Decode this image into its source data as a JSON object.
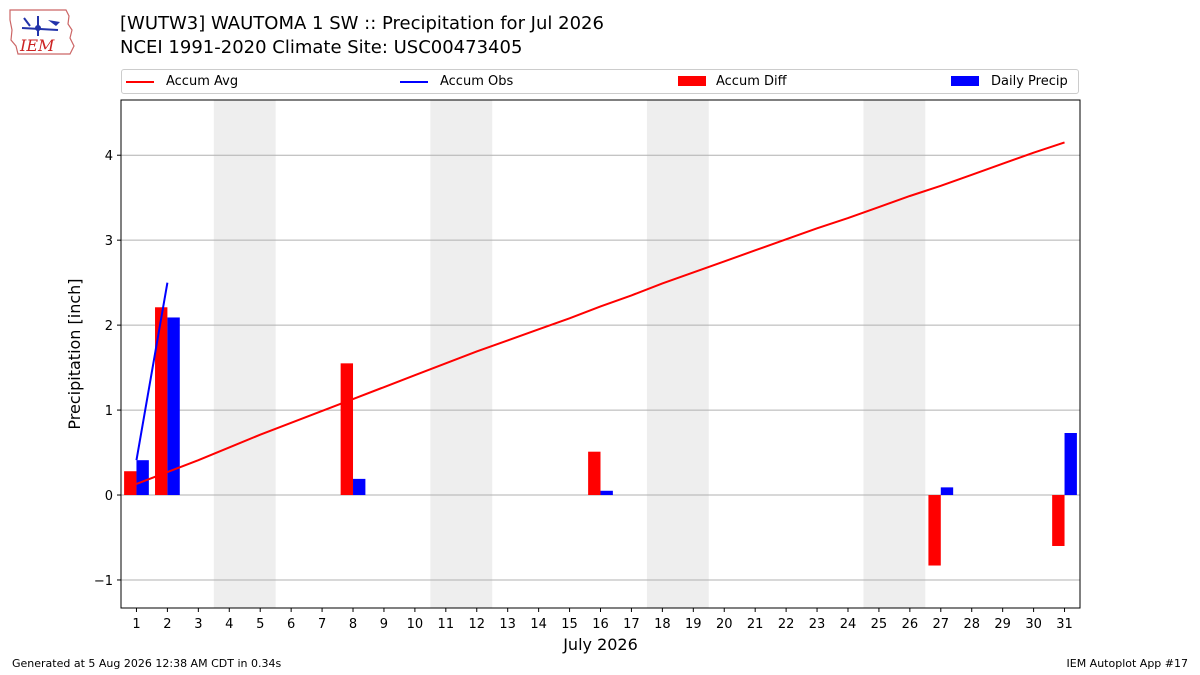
{
  "title_line1": "[WUTW3] WAUTOMA 1 SW :: Precipitation for Jul 2026",
  "title_line2": "NCEI 1991-2020 Climate Site: USC00473405",
  "logo_text": "IEM",
  "footer_left": "Generated at 5 Aug 2026 12:38 AM CDT in 0.34s",
  "footer_right": "IEM Autoplot App #17",
  "legend": [
    {
      "label": "Accum Avg",
      "kind": "line",
      "color": "#ff0000"
    },
    {
      "label": "Accum Obs",
      "kind": "line",
      "color": "#0000ff"
    },
    {
      "label": "Accum Diff",
      "kind": "patch",
      "color": "#ff0000"
    },
    {
      "label": "Daily Precip",
      "kind": "patch",
      "color": "#0000ff"
    }
  ],
  "chart_data": {
    "type": "bar",
    "xlabel": "July 2026",
    "ylabel": "Precipitation [inch]",
    "x": [
      1,
      2,
      3,
      4,
      5,
      6,
      7,
      8,
      9,
      10,
      11,
      12,
      13,
      14,
      15,
      16,
      17,
      18,
      19,
      20,
      21,
      22,
      23,
      24,
      25,
      26,
      27,
      28,
      29,
      30,
      31
    ],
    "xlim": [
      0.5,
      31.5
    ],
    "ylim": [
      -1.33,
      4.65
    ],
    "yticks": [
      -1,
      0,
      1,
      2,
      3,
      4
    ],
    "ytick_labels": [
      "−1",
      "0",
      "1",
      "2",
      "3",
      "4"
    ],
    "grid": "y",
    "weekend_shading": [
      [
        3.5,
        5.5
      ],
      [
        10.5,
        12.5
      ],
      [
        17.5,
        19.5
      ],
      [
        24.5,
        26.5
      ]
    ],
    "shade_color": "#eeeeee",
    "series": [
      {
        "name": "Accum Avg",
        "type": "line",
        "color": "#ff0000",
        "values": [
          0.13,
          0.27,
          0.41,
          0.56,
          0.71,
          0.85,
          0.99,
          1.13,
          1.27,
          1.41,
          1.55,
          1.69,
          1.82,
          1.95,
          2.08,
          2.22,
          2.35,
          2.49,
          2.62,
          2.75,
          2.88,
          3.01,
          3.14,
          3.26,
          3.39,
          3.52,
          3.64,
          3.77,
          3.9,
          4.03,
          4.15
        ]
      },
      {
        "name": "Accum Obs",
        "type": "line",
        "color": "#0000ff",
        "x": [
          1,
          2
        ],
        "values": [
          0.41,
          2.5
        ]
      },
      {
        "name": "Accum Diff",
        "type": "bar",
        "color": "#ff0000",
        "x": [
          1,
          2,
          8,
          16,
          27,
          31
        ],
        "values": [
          0.28,
          2.21,
          1.55,
          0.51,
          -0.83,
          -0.6
        ]
      },
      {
        "name": "Daily Precip",
        "type": "bar",
        "color": "#0000ff",
        "x": [
          1,
          2,
          8,
          16,
          27,
          31
        ],
        "values": [
          0.41,
          2.09,
          0.19,
          0.05,
          0.09,
          0.73
        ]
      }
    ]
  }
}
